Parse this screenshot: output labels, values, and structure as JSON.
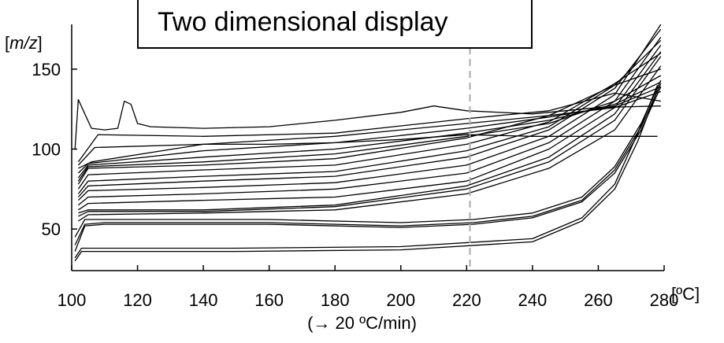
{
  "title": "Two dimensional display",
  "y_unit": {
    "open": "[",
    "italic": "m/z",
    "close": "]"
  },
  "x_unit": "[ºC]",
  "subtitle": "(→ 20 ºC/min)",
  "chart_data": {
    "type": "line",
    "title": "Two dimensional display",
    "xlabel": "[ºC]",
    "ylabel": "[m/z]",
    "xlim": [
      100,
      280
    ],
    "ylim": [
      24,
      178
    ],
    "xticks": [
      100,
      120,
      140,
      160,
      180,
      200,
      220,
      240,
      260,
      280
    ],
    "yticks": [
      50,
      100,
      150
    ],
    "grid": false,
    "legend": "none",
    "vline": {
      "x": 221,
      "style": "dashed",
      "color": "#aaaaaa"
    },
    "series": [
      {
        "values": [
          [
            101,
            30
          ],
          [
            103,
            36
          ],
          [
            110,
            36
          ],
          [
            150,
            36
          ],
          [
            200,
            37
          ],
          [
            240,
            42
          ],
          [
            255,
            55
          ],
          [
            265,
            75
          ],
          [
            272,
            105
          ],
          [
            278,
            137
          ]
        ]
      },
      {
        "values": [
          [
            101,
            32
          ],
          [
            103,
            38
          ],
          [
            110,
            38
          ],
          [
            150,
            38
          ],
          [
            200,
            39
          ],
          [
            240,
            44
          ],
          [
            255,
            57
          ],
          [
            265,
            78
          ],
          [
            272,
            110
          ],
          [
            278,
            140
          ]
        ]
      },
      {
        "values": [
          [
            101,
            36
          ],
          [
            104,
            52
          ],
          [
            110,
            53
          ],
          [
            160,
            53
          ],
          [
            200,
            51
          ],
          [
            222,
            53
          ],
          [
            240,
            57
          ],
          [
            255,
            67
          ],
          [
            265,
            85
          ],
          [
            273,
            112
          ],
          [
            279,
            139
          ]
        ]
      },
      {
        "values": [
          [
            101,
            40
          ],
          [
            104,
            53
          ],
          [
            110,
            54
          ],
          [
            160,
            54
          ],
          [
            200,
            52
          ],
          [
            222,
            54
          ],
          [
            240,
            58
          ],
          [
            255,
            68
          ],
          [
            265,
            87
          ],
          [
            273,
            114
          ],
          [
            279,
            141
          ]
        ]
      },
      {
        "values": [
          [
            101,
            45
          ],
          [
            104,
            56
          ],
          [
            110,
            56
          ],
          [
            160,
            56
          ],
          [
            200,
            54
          ],
          [
            222,
            56
          ],
          [
            240,
            60
          ],
          [
            255,
            70
          ],
          [
            265,
            89
          ],
          [
            273,
            116
          ],
          [
            279,
            143
          ]
        ]
      },
      {
        "values": [
          [
            102,
            55
          ],
          [
            105,
            59
          ],
          [
            140,
            60
          ],
          [
            180,
            62
          ],
          [
            220,
            72
          ],
          [
            245,
            88
          ],
          [
            265,
            112
          ],
          [
            279,
            152
          ]
        ]
      },
      {
        "values": [
          [
            102,
            58
          ],
          [
            105,
            61
          ],
          [
            140,
            61
          ],
          [
            180,
            64
          ],
          [
            220,
            75
          ],
          [
            245,
            92
          ],
          [
            265,
            118
          ],
          [
            279,
            158
          ]
        ]
      },
      {
        "values": [
          [
            102,
            60
          ],
          [
            105,
            62
          ],
          [
            140,
            62
          ],
          [
            180,
            65
          ],
          [
            220,
            77
          ],
          [
            245,
            95
          ],
          [
            265,
            122
          ],
          [
            279,
            161
          ]
        ]
      },
      {
        "values": [
          [
            102,
            62
          ],
          [
            105,
            66
          ],
          [
            140,
            68
          ],
          [
            180,
            70
          ],
          [
            220,
            80
          ],
          [
            245,
            100
          ],
          [
            265,
            126
          ],
          [
            279,
            165
          ]
        ]
      },
      {
        "values": [
          [
            102,
            65
          ],
          [
            105,
            70
          ],
          [
            140,
            72
          ],
          [
            180,
            75
          ],
          [
            220,
            85
          ],
          [
            245,
            104
          ],
          [
            265,
            130
          ],
          [
            279,
            170
          ]
        ]
      },
      {
        "values": [
          [
            102,
            68
          ],
          [
            105,
            74
          ],
          [
            140,
            76
          ],
          [
            180,
            79
          ],
          [
            220,
            90
          ],
          [
            245,
            108
          ],
          [
            265,
            134
          ],
          [
            279,
            178
          ]
        ]
      },
      {
        "values": [
          [
            102,
            70
          ],
          [
            105,
            77
          ],
          [
            140,
            80
          ],
          [
            180,
            83
          ],
          [
            220,
            95
          ],
          [
            245,
            112
          ],
          [
            265,
            138
          ],
          [
            279,
            175
          ]
        ]
      },
      {
        "values": [
          [
            102,
            72
          ],
          [
            105,
            80
          ],
          [
            140,
            83
          ],
          [
            180,
            86
          ],
          [
            220,
            99
          ],
          [
            245,
            114
          ],
          [
            265,
            140
          ],
          [
            279,
            168
          ]
        ]
      },
      {
        "values": [
          [
            102,
            75
          ],
          [
            105,
            84
          ],
          [
            140,
            87
          ],
          [
            180,
            90
          ],
          [
            220,
            103
          ],
          [
            245,
            117
          ],
          [
            265,
            141
          ],
          [
            279,
            160
          ]
        ]
      },
      {
        "values": [
          [
            102,
            78
          ],
          [
            105,
            88
          ],
          [
            140,
            90
          ],
          [
            180,
            94
          ],
          [
            220,
            107
          ],
          [
            245,
            121
          ],
          [
            265,
            140
          ],
          [
            279,
            150
          ]
        ]
      },
      {
        "values": [
          [
            102,
            80
          ],
          [
            105,
            89
          ],
          [
            140,
            92
          ],
          [
            180,
            97
          ],
          [
            220,
            108
          ],
          [
            245,
            116
          ],
          [
            265,
            130
          ],
          [
            279,
            146
          ]
        ]
      },
      {
        "values": [
          [
            102,
            82
          ],
          [
            105,
            90
          ],
          [
            140,
            95
          ],
          [
            180,
            100
          ],
          [
            220,
            110
          ],
          [
            245,
            118
          ],
          [
            265,
            128
          ],
          [
            279,
            142
          ]
        ]
      },
      {
        "values": [
          [
            102,
            85
          ],
          [
            105,
            91
          ],
          [
            140,
            99
          ],
          [
            180,
            104
          ],
          [
            220,
            113
          ],
          [
            245,
            120
          ],
          [
            265,
            127
          ],
          [
            279,
            139
          ]
        ]
      },
      {
        "values": [
          [
            102,
            88
          ],
          [
            106,
            92
          ],
          [
            140,
            103
          ],
          [
            180,
            108
          ],
          [
            220,
            116
          ],
          [
            245,
            121
          ],
          [
            265,
            126
          ],
          [
            279,
            136
          ]
        ]
      },
      {
        "values": [
          [
            102,
            90
          ],
          [
            107,
            101
          ],
          [
            140,
            103
          ],
          [
            160,
            103
          ],
          [
            180,
            104
          ],
          [
            200,
            106
          ],
          [
            220,
            109
          ],
          [
            240,
            108
          ],
          [
            260,
            108
          ],
          [
            278,
            108
          ]
        ]
      },
      {
        "values": [
          [
            102,
            92
          ],
          [
            108,
            109
          ],
          [
            140,
            108
          ],
          [
            180,
            110
          ],
          [
            220,
            119
          ],
          [
            245,
            124
          ],
          [
            265,
            135
          ],
          [
            279,
            130
          ]
        ]
      },
      {
        "values": [
          [
            101,
            100
          ],
          [
            102,
            131
          ],
          [
            104,
            122
          ],
          [
            106,
            113
          ],
          [
            110,
            112
          ],
          [
            114,
            113
          ],
          [
            116,
            130
          ],
          [
            118,
            128
          ],
          [
            120,
            116
          ],
          [
            124,
            114
          ],
          [
            140,
            113
          ],
          [
            160,
            114
          ],
          [
            180,
            118
          ],
          [
            200,
            123
          ],
          [
            210,
            127
          ],
          [
            220,
            124
          ],
          [
            240,
            122
          ],
          [
            260,
            126
          ],
          [
            279,
            127
          ]
        ]
      }
    ]
  }
}
